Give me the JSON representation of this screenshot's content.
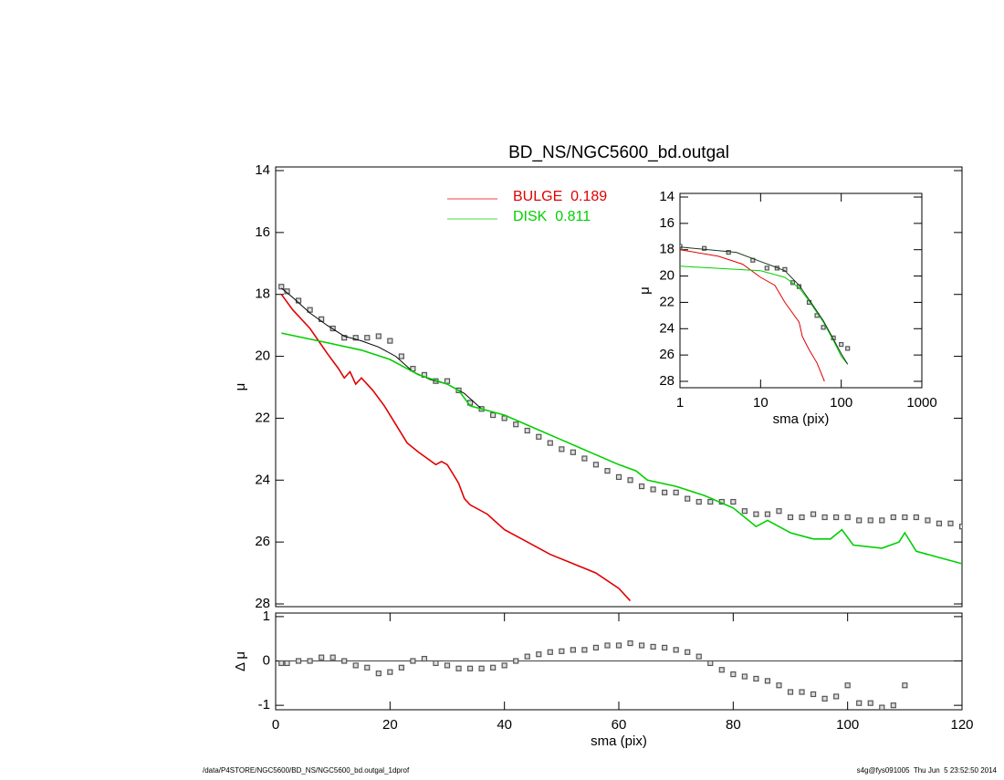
{
  "chart_data": [
    {
      "type": "line",
      "title": "BD_NS/NGC5600_bd.outgal",
      "ylabel": "μ",
      "xlim": [
        0,
        120
      ],
      "ylim": [
        28,
        14
      ],
      "yticks": [
        14,
        16,
        18,
        20,
        22,
        24,
        26,
        28
      ],
      "series": [
        {
          "style": "points",
          "color": "#555555",
          "x": [
            1,
            2,
            4,
            6,
            8,
            10,
            12,
            14,
            16,
            18,
            20,
            22,
            24,
            26,
            28,
            30,
            32,
            34,
            36,
            38,
            40,
            42,
            44,
            46,
            48,
            50,
            52,
            54,
            56,
            58,
            60,
            62,
            64,
            66,
            68,
            70,
            72,
            74,
            76,
            78,
            80,
            82,
            84,
            86,
            88,
            90,
            92,
            94,
            96,
            98,
            100,
            102,
            104,
            106,
            108,
            110,
            112,
            114,
            116,
            118,
            120
          ],
          "values": [
            17.75,
            17.9,
            18.2,
            18.5,
            18.8,
            19.1,
            19.4,
            19.4,
            19.4,
            19.35,
            19.5,
            20.0,
            20.4,
            20.6,
            20.8,
            20.8,
            21.1,
            21.5,
            21.7,
            21.9,
            22.0,
            22.2,
            22.4,
            22.6,
            22.8,
            23.0,
            23.1,
            23.3,
            23.5,
            23.7,
            23.9,
            24.0,
            24.2,
            24.3,
            24.4,
            24.4,
            24.6,
            24.7,
            24.7,
            24.7,
            24.7,
            25.0,
            25.1,
            25.1,
            25.0,
            25.2,
            25.2,
            25.1,
            25.2,
            25.2,
            25.2,
            25.3,
            25.3,
            25.3,
            25.2,
            25.2,
            25.2,
            25.3,
            25.4,
            25.4,
            25.5
          ]
        },
        {
          "style": "line",
          "color": "#000000",
          "x": [
            1,
            3,
            6,
            9,
            12,
            15,
            18,
            21,
            24,
            27,
            30,
            33,
            36
          ],
          "values": [
            17.8,
            18.1,
            18.6,
            19.0,
            19.35,
            19.5,
            19.7,
            20.0,
            20.5,
            20.75,
            20.9,
            21.2,
            21.7
          ]
        },
        {
          "name": "BULGE  0.189",
          "style": "line",
          "color": "#e00000",
          "x": [
            1,
            3,
            6,
            9,
            11,
            12,
            13,
            14,
            15,
            17,
            19,
            21,
            23,
            25,
            28,
            29,
            30,
            31,
            32,
            33,
            34,
            37,
            40,
            44,
            48,
            52,
            56,
            60,
            62
          ],
          "values": [
            18.0,
            18.5,
            19.1,
            19.9,
            20.4,
            20.7,
            20.5,
            20.9,
            20.7,
            21.1,
            21.6,
            22.2,
            22.8,
            23.1,
            23.5,
            23.4,
            23.5,
            23.8,
            24.1,
            24.6,
            24.8,
            25.1,
            25.6,
            26.0,
            26.4,
            26.7,
            27.0,
            27.5,
            27.9
          ]
        },
        {
          "name": "DISK  0.811",
          "style": "line",
          "color": "#00d000",
          "x": [
            1,
            10,
            15,
            20,
            25,
            30,
            32,
            34,
            40,
            45,
            50,
            55,
            60,
            63,
            65,
            70,
            75,
            80,
            82,
            84,
            86,
            88,
            90,
            94,
            97,
            99,
            101,
            106,
            109,
            110,
            112,
            116,
            120
          ],
          "values": [
            19.25,
            19.6,
            19.8,
            20.1,
            20.6,
            20.9,
            21.1,
            21.6,
            21.9,
            22.3,
            22.7,
            23.1,
            23.5,
            23.7,
            24.0,
            24.2,
            24.5,
            24.9,
            25.2,
            25.5,
            25.3,
            25.5,
            25.7,
            25.9,
            25.9,
            25.6,
            26.1,
            26.2,
            26.0,
            25.7,
            26.3,
            26.5,
            26.7
          ]
        }
      ]
    },
    {
      "type": "scatter",
      "ylabel": "Δ μ",
      "xlabel": "sma (pix)",
      "xlim": [
        0,
        120
      ],
      "xticks": [
        0,
        20,
        40,
        60,
        80,
        100,
        120
      ],
      "ylim": [
        -1.1,
        1.08
      ],
      "yticks": [
        -1,
        0,
        1
      ],
      "refline": 0,
      "series": [
        {
          "style": "points",
          "color": "#555555",
          "x": [
            1,
            2,
            4,
            6,
            8,
            10,
            12,
            14,
            16,
            18,
            20,
            22,
            24,
            26,
            28,
            30,
            32,
            34,
            36,
            38,
            40,
            42,
            44,
            46,
            48,
            50,
            52,
            54,
            56,
            58,
            60,
            62,
            64,
            66,
            68,
            70,
            72,
            74,
            76,
            78,
            80,
            82,
            84,
            86,
            88,
            90,
            92,
            94,
            96,
            98,
            100,
            102,
            104,
            106,
            108,
            110
          ],
          "values": [
            -0.05,
            -0.05,
            0,
            0,
            0.08,
            0.08,
            0,
            -0.1,
            -0.15,
            -0.28,
            -0.25,
            -0.15,
            0,
            0.05,
            -0.05,
            -0.1,
            -0.17,
            -0.17,
            -0.17,
            -0.15,
            -0.1,
            0,
            0.1,
            0.15,
            0.2,
            0.22,
            0.25,
            0.25,
            0.3,
            0.35,
            0.35,
            0.4,
            0.35,
            0.32,
            0.3,
            0.25,
            0.2,
            0.1,
            -0.05,
            -0.2,
            -0.3,
            -0.35,
            -0.4,
            -0.45,
            -0.55,
            -0.7,
            -0.7,
            -0.75,
            -0.85,
            -0.8,
            -0.55,
            -0.95,
            -0.95,
            -1.05,
            -1.0,
            -0.55
          ]
        }
      ]
    },
    {
      "type": "line",
      "ylabel": "μ",
      "xlabel": "sma (pix)",
      "xlog": true,
      "xlim": [
        1,
        1000
      ],
      "xticks": [
        1,
        10,
        100,
        1000
      ],
      "ylim": [
        28,
        14
      ],
      "yticks": [
        14,
        16,
        18,
        20,
        22,
        24,
        26,
        28
      ],
      "series": [
        {
          "style": "points",
          "color": "#555555",
          "x": [
            1,
            2,
            4,
            8,
            12,
            16,
            20,
            25,
            30,
            40,
            50,
            60,
            80,
            100,
            120
          ],
          "values": [
            17.75,
            17.9,
            18.2,
            18.8,
            19.4,
            19.4,
            19.5,
            20.5,
            20.8,
            22.0,
            23.0,
            23.9,
            24.7,
            25.2,
            25.5
          ]
        },
        {
          "style": "line",
          "color": "#e00000",
          "x": [
            1,
            3,
            6,
            10,
            15,
            20,
            30,
            33,
            40,
            50,
            62
          ],
          "values": [
            18.0,
            18.5,
            19.1,
            20.1,
            20.7,
            22.0,
            23.5,
            24.6,
            25.6,
            26.6,
            28.0
          ]
        },
        {
          "style": "line",
          "color": "#00d000",
          "x": [
            1,
            10,
            20,
            30,
            40,
            60,
            80,
            100,
            120
          ],
          "values": [
            19.25,
            19.6,
            20.1,
            20.9,
            21.9,
            23.5,
            24.9,
            26.1,
            26.7
          ]
        },
        {
          "style": "line",
          "color": "#1a3a1a",
          "x": [
            1,
            5,
            10,
            15,
            20,
            30,
            40,
            60,
            80,
            100,
            120
          ],
          "values": [
            17.8,
            18.2,
            18.9,
            19.3,
            19.6,
            20.7,
            21.8,
            23.4,
            24.8,
            25.9,
            26.7
          ]
        }
      ]
    }
  ],
  "footer": {
    "left": "/data/P4STORE/NGC5600/BD_NS/NGC5600_bd.outgal_1dprof",
    "right": "s4g@fys091005  Thu Jun  5 23:52:50 2014"
  }
}
